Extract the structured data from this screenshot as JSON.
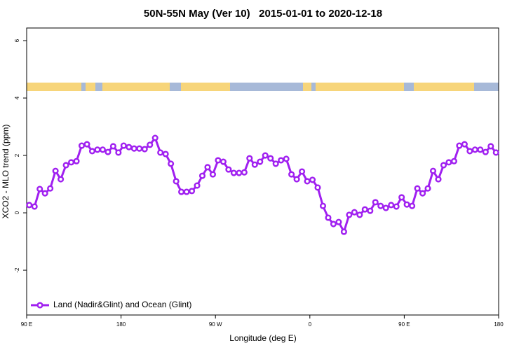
{
  "chart_data": {
    "type": "line",
    "title": "50N-55N May (Ver 10)   2015-01-01 to 2020-12-18",
    "xlabel": "Longitude (deg E)",
    "ylabel": "XCO2 - MLO trend (ppm)",
    "xlim": [
      90,
      540
    ],
    "xticks": [
      {
        "value": 90,
        "label": "90 E"
      },
      180,
      {
        "value": 270,
        "label": "90 W"
      },
      {
        "value": 360,
        "label": "0"
      },
      {
        "value": 450,
        "label": "90 E"
      },
      {
        "value": 540,
        "label": "180"
      }
    ],
    "ylim": [
      -3.56,
      6.44
    ],
    "yticks": [
      -2,
      0,
      2,
      4,
      6
    ],
    "legend": "bottom-left",
    "series": [
      {
        "name": "Land (Nadir&Glint) and Ocean (Glint)",
        "color": "#a020f0",
        "x": [
          92.5,
          97.5,
          102.5,
          107.5,
          112.5,
          117.5,
          122.5,
          127.5,
          132.5,
          137.5,
          142.5,
          147.5,
          152.5,
          157.5,
          162.5,
          167.5,
          172.5,
          177.5,
          182.5,
          187.5,
          192.5,
          197.5,
          202.5,
          207.5,
          212.5,
          217.5,
          222.5,
          227.5,
          232.5,
          237.5,
          242.5,
          247.5,
          252.5,
          257.5,
          262.5,
          267.5,
          272.5,
          277.5,
          282.5,
          287.5,
          292.5,
          297.5,
          302.5,
          307.5,
          312.5,
          317.5,
          322.5,
          327.5,
          332.5,
          337.5,
          342.5,
          347.5,
          352.5,
          357.5,
          362.5,
          367.5,
          372.5,
          377.5,
          382.5,
          387.5,
          392.5,
          397.5,
          402.5,
          407.5,
          412.5,
          417.5,
          422.5,
          427.5,
          432.5,
          437.5,
          442.5,
          447.5,
          452.5,
          457.5,
          462.5,
          467.5,
          472.5,
          477.5,
          482.5,
          487.5,
          492.5,
          497.5,
          502.5,
          507.5,
          512.5,
          517.5,
          522.5,
          527.5,
          532.5,
          537.5
        ],
        "values": [
          0.27,
          0.22,
          0.83,
          0.68,
          0.85,
          1.46,
          1.17,
          1.66,
          1.76,
          1.8,
          2.34,
          2.39,
          2.15,
          2.2,
          2.2,
          2.12,
          2.32,
          2.1,
          2.34,
          2.29,
          2.24,
          2.24,
          2.22,
          2.37,
          2.61,
          2.1,
          2.05,
          1.71,
          1.1,
          0.73,
          0.73,
          0.76,
          0.95,
          1.29,
          1.59,
          1.34,
          1.83,
          1.78,
          1.51,
          1.39,
          1.39,
          1.41,
          1.9,
          1.68,
          1.78,
          2.0,
          1.9,
          1.71,
          1.83,
          1.88,
          1.34,
          1.17,
          1.44,
          1.1,
          1.15,
          0.88,
          0.24,
          -0.17,
          -0.39,
          -0.32,
          -0.66,
          -0.07,
          0.02,
          -0.07,
          0.12,
          0.07,
          0.37,
          0.24,
          0.17,
          0.27,
          0.22,
          0.54,
          0.29,
          0.24,
          0.85,
          0.68,
          0.85,
          1.46,
          1.17,
          1.66,
          1.76,
          1.8,
          2.34,
          2.39,
          2.15,
          2.2,
          2.2,
          2.12,
          2.32,
          2.1
        ]
      }
    ]
  }
}
